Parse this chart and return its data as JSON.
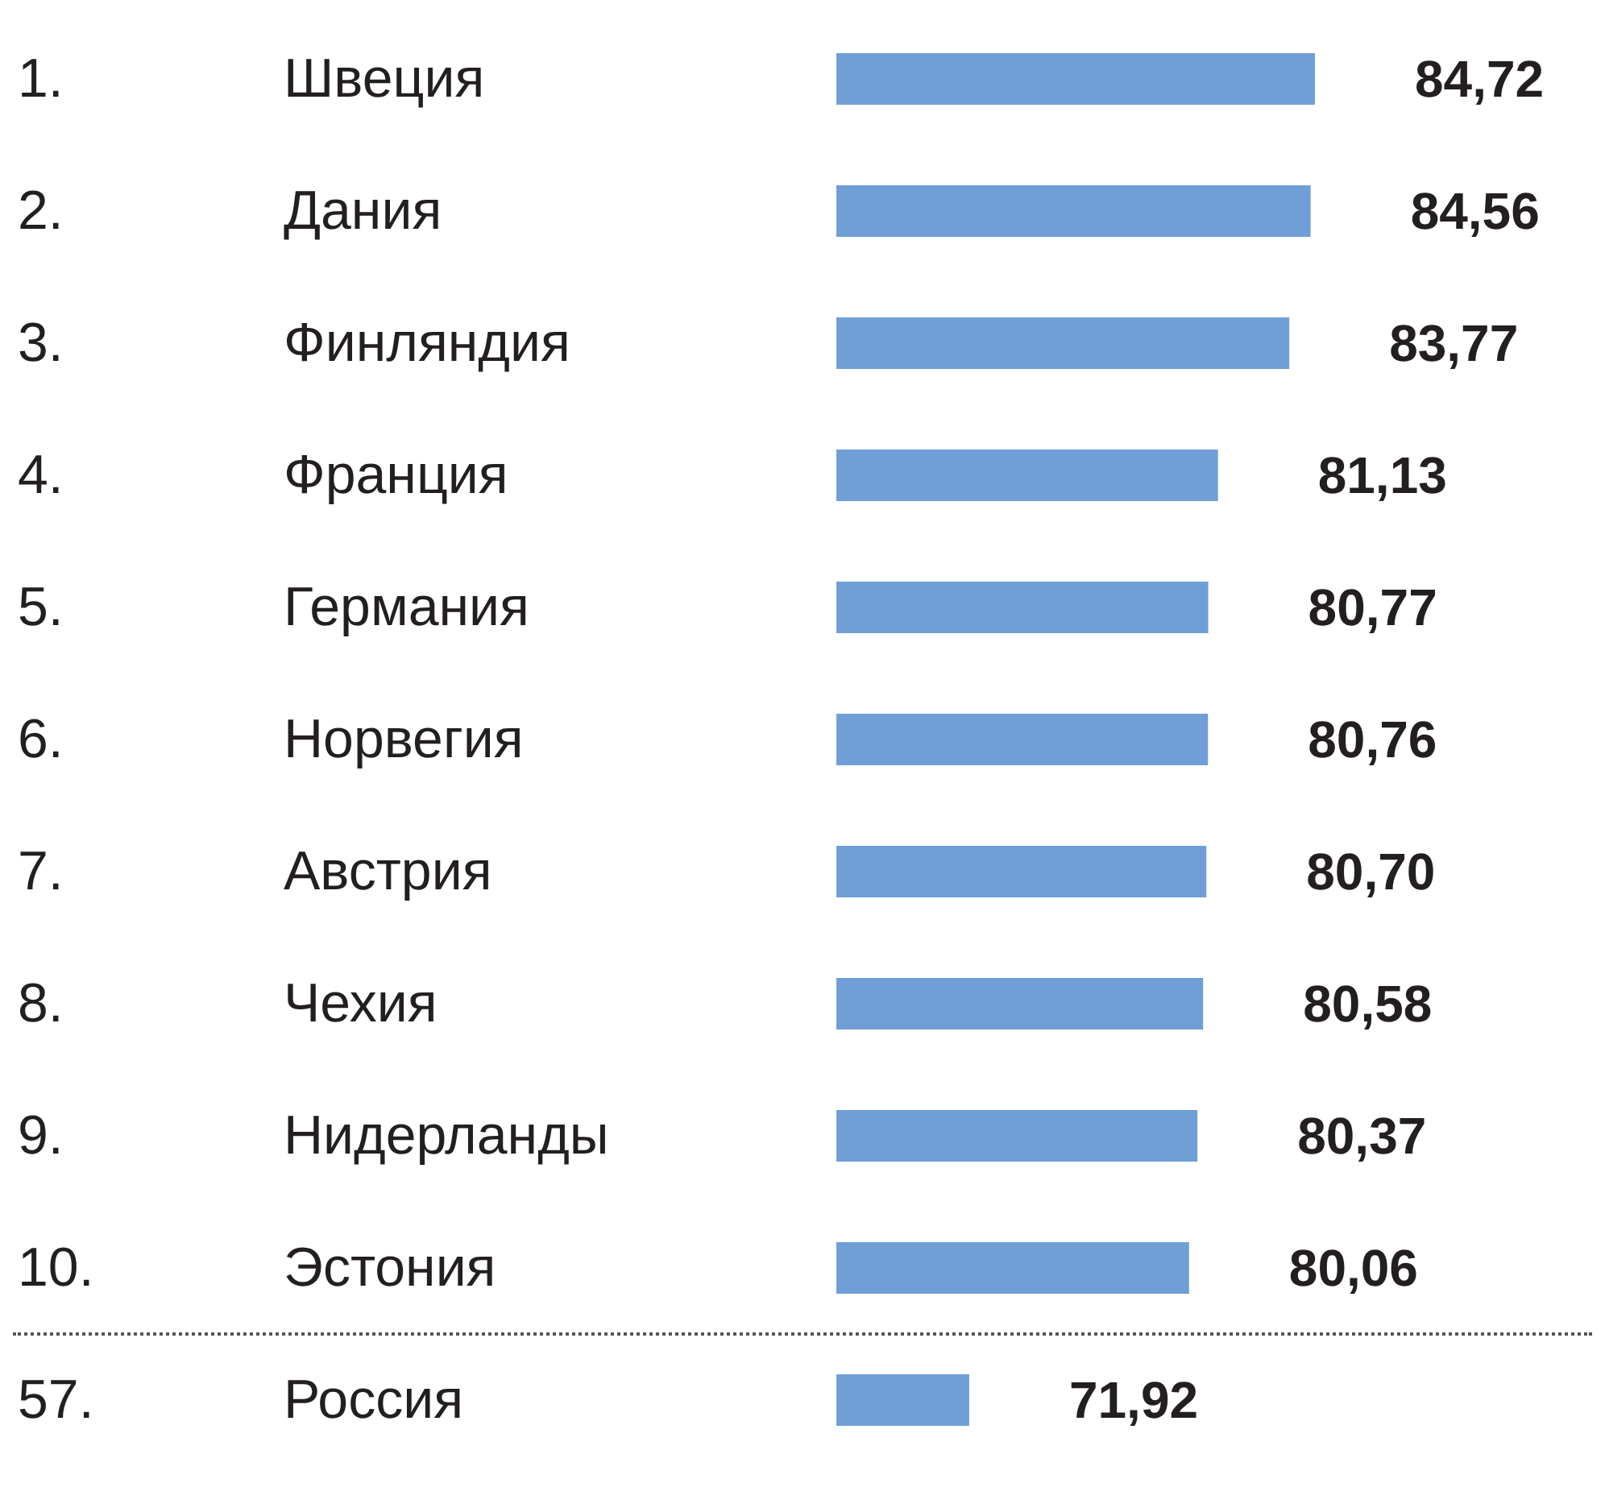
{
  "chart_data": {
    "type": "bar",
    "orientation": "horizontal",
    "categories": [
      "1. Швеция",
      "2. Дания",
      "3. Финляндия",
      "4. Франция",
      "5. Германия",
      "6. Норвегия",
      "7. Австрия",
      "8. Чехия",
      "9. Нидерланды",
      "10. Эстония",
      "57. Россия"
    ],
    "values": [
      84.72,
      84.56,
      83.77,
      81.13,
      80.77,
      80.76,
      80.7,
      80.58,
      80.37,
      80.06,
      71.92
    ],
    "value_labels": [
      "84,72",
      "84,56",
      "83,77",
      "81,13",
      "80,77",
      "80,76",
      "80,70",
      "80,58",
      "80,37",
      "80,06",
      "71,92"
    ],
    "color": "#6f9fd6",
    "xlim": [
      67,
      84.72
    ]
  }
}
